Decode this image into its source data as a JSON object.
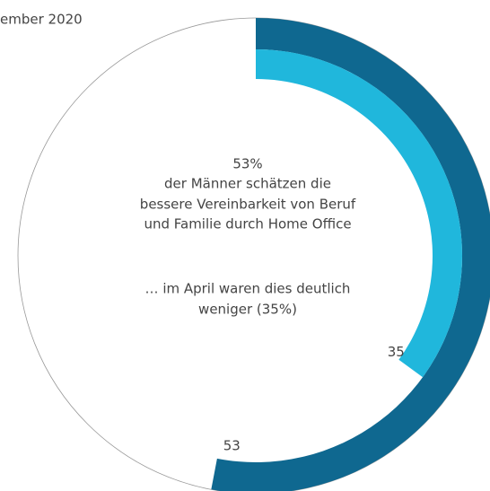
{
  "chart_data": {
    "type": "radial_bar",
    "title": "ember 2020",
    "values": [
      53,
      35
    ],
    "colors": [
      "#0f6890",
      "#20b7dc"
    ],
    "ylim": [
      0,
      100
    ],
    "annotations": [
      "53%",
      "der Männer schätzen die",
      "bessere Vereinbarkeit von Beruf",
      "und Familie durch Home Office",
      "… im April waren dies deutlich",
      "weniger (35%)"
    ]
  }
}
